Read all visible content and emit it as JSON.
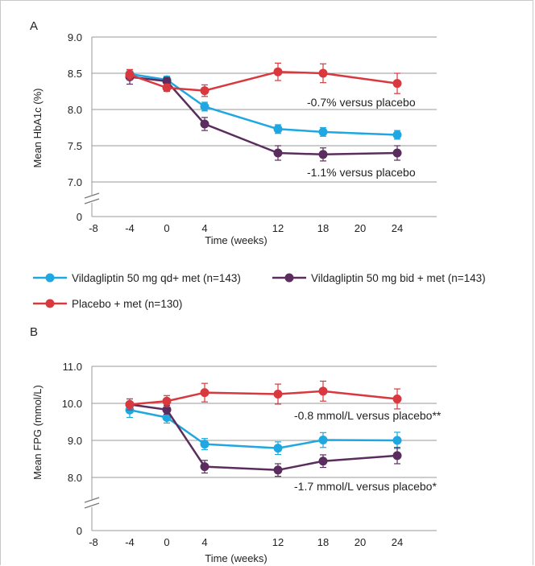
{
  "legend": [
    {
      "label": "Vildagliptin 50 mg qd+ met (n=143)",
      "color": "#1ea7e1"
    },
    {
      "label": "Vildagliptin 50 mg bid + met (n=143)",
      "color": "#5b2d5e"
    },
    {
      "label": "Placebo + met (n=130)",
      "color": "#d9383e"
    }
  ],
  "chart_data": [
    {
      "panel": "A",
      "type": "line",
      "xlabel": "Time (weeks)",
      "ylabel": "Mean HbA1c (%)",
      "x_ticks": [
        "-8",
        "-4",
        "0",
        "4",
        "12",
        "18",
        "20",
        "24"
      ],
      "y_ticks": [
        "0",
        "7.0",
        "7.5",
        "8.0",
        "8.5",
        "9.0"
      ],
      "ylim": [
        7.0,
        9.0
      ],
      "axis_break": true,
      "grid": true,
      "series": [
        {
          "name": "Vildagliptin 50 mg qd+ met (n=143)",
          "color": "#1ea7e1",
          "x": [
            "-4",
            "0",
            "4",
            "12",
            "18",
            "24"
          ],
          "values": [
            8.49,
            8.41,
            8.04,
            7.73,
            7.69,
            7.65
          ],
          "err": [
            0.06,
            0.05,
            0.06,
            0.06,
            0.06,
            0.06
          ]
        },
        {
          "name": "Vildagliptin 50 mg bid + met (n=143)",
          "color": "#5b2d5e",
          "x": [
            "-4",
            "0",
            "4",
            "12",
            "18",
            "24"
          ],
          "values": [
            8.45,
            8.39,
            7.8,
            7.4,
            7.38,
            7.4
          ],
          "err": [
            0.1,
            0.05,
            0.09,
            0.1,
            0.09,
            0.1
          ]
        },
        {
          "name": "Placebo + met (n=130)",
          "color": "#d9383e",
          "x": [
            "-4",
            "0",
            "4",
            "12",
            "18",
            "24"
          ],
          "values": [
            8.48,
            8.3,
            8.26,
            8.52,
            8.5,
            8.36
          ],
          "err": [
            0.07,
            0.05,
            0.08,
            0.12,
            0.13,
            0.14
          ]
        }
      ],
      "annotations": [
        "-0.7% versus placebo",
        "-1.1% versus placebo"
      ]
    },
    {
      "panel": "B",
      "type": "line",
      "xlabel": "Time (weeks)",
      "ylabel": "Mean FPG (mmol/L)",
      "x_ticks": [
        "-8",
        "-4",
        "0",
        "4",
        "12",
        "18",
        "20",
        "24"
      ],
      "y_ticks": [
        "0",
        "8.0",
        "9.0",
        "10.0",
        "11.0"
      ],
      "ylim": [
        8.0,
        11.0
      ],
      "axis_break": true,
      "grid": true,
      "series": [
        {
          "name": "Vildagliptin 50 mg qd+ met (n=143)",
          "color": "#1ea7e1",
          "x": [
            "-4",
            "0",
            "4",
            "12",
            "18",
            "24"
          ],
          "values": [
            9.82,
            9.62,
            8.9,
            8.79,
            9.01,
            9.0
          ],
          "err": [
            0.2,
            0.15,
            0.15,
            0.17,
            0.2,
            0.22
          ]
        },
        {
          "name": "Vildagliptin 50 mg bid + met (n=143)",
          "color": "#5b2d5e",
          "x": [
            "-4",
            "0",
            "4",
            "12",
            "18",
            "24"
          ],
          "values": [
            9.97,
            9.83,
            8.29,
            8.2,
            8.44,
            8.59
          ],
          "err": [
            0.15,
            0.12,
            0.17,
            0.17,
            0.17,
            0.22
          ]
        },
        {
          "name": "Placebo + met (n=130)",
          "color": "#d9383e",
          "x": [
            "-4",
            "0",
            "4",
            "12",
            "18",
            "24"
          ],
          "values": [
            9.97,
            10.06,
            10.29,
            10.25,
            10.33,
            10.12
          ],
          "err": [
            0.15,
            0.15,
            0.25,
            0.27,
            0.27,
            0.27
          ]
        }
      ],
      "annotations": [
        "-0.8 mmol/L versus placebo**",
        "-1.7 mmol/L versus placebo*"
      ]
    }
  ]
}
